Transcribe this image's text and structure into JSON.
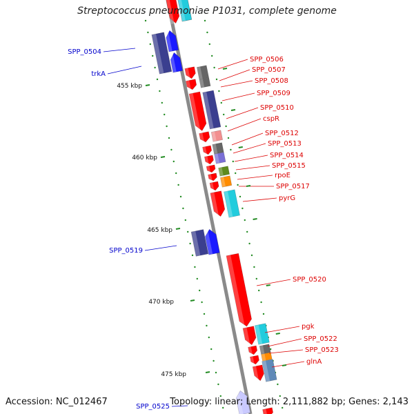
{
  "title": "Streptococcus pneumoniae P1031, complete genome",
  "accession": "Accession: NC_012467",
  "summary": "Topology: linear; Length: 2,111,882 bp; Genes: 2,143",
  "colors": {
    "backbone": "#8a8a8a",
    "forward_label": "#0000cc",
    "reverse_label": "#dd0000",
    "tick": "#228b22",
    "red": "#ff0000",
    "pink": "#f28f8f",
    "cyan": "#22ccdd",
    "dark_blue": "#3b3f8f",
    "blue": "#1a1aff",
    "slate": "#666666",
    "lavender": "#7b6fd6",
    "olive": "#5e8b1e",
    "orange": "#ff8c00",
    "steel": "#5f89b8",
    "light_blue": "#c9c9ff"
  },
  "ticks": [
    "455 kbp",
    "460 kbp",
    "465 kbp",
    "470 kbp",
    "475 kbp"
  ],
  "forward_genes": [
    {
      "name": "SPP_0504"
    },
    {
      "name": "trkA"
    },
    {
      "name": "SPP_0519"
    },
    {
      "name": "SPP_0525"
    }
  ],
  "reverse_genes": [
    {
      "name": "SPP_0506"
    },
    {
      "name": "SPP_0507"
    },
    {
      "name": "SPP_0508"
    },
    {
      "name": "SPP_0509"
    },
    {
      "name": "SPP_0510"
    },
    {
      "name": "cspR"
    },
    {
      "name": "SPP_0512"
    },
    {
      "name": "SPP_0513"
    },
    {
      "name": "SPP_0514"
    },
    {
      "name": "SPP_0515"
    },
    {
      "name": "rpoE"
    },
    {
      "name": "SPP_0517"
    },
    {
      "name": "pyrG"
    },
    {
      "name": "SPP_0520"
    },
    {
      "name": "pgk"
    },
    {
      "name": "SPP_0522"
    },
    {
      "name": "SPP_0523"
    },
    {
      "name": "glnA"
    }
  ]
}
